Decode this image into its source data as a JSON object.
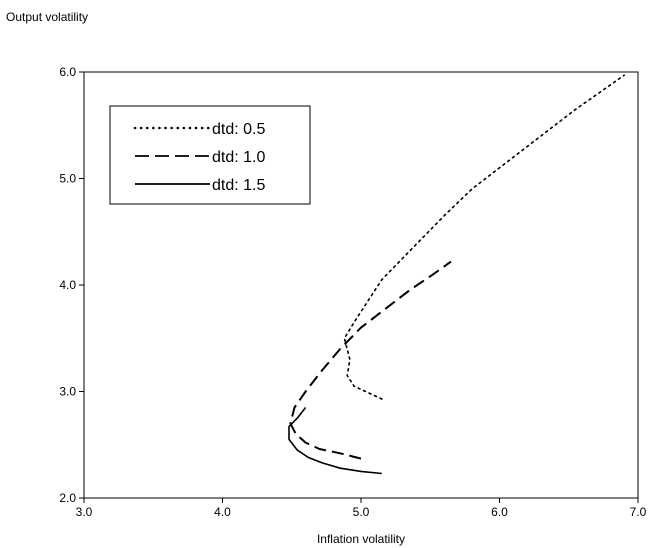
{
  "chart_data": {
    "type": "line",
    "title": "",
    "ylabel": "Output volatility",
    "xlabel": "Inflation volatility",
    "xlim": [
      3.0,
      7.0
    ],
    "ylim": [
      2.0,
      6.0
    ],
    "x_ticks": [
      "3.0",
      "4.0",
      "5.0",
      "6.0",
      "7.0"
    ],
    "y_ticks": [
      "2.0",
      "3.0",
      "4.0",
      "5.0",
      "6.0"
    ],
    "grid": false,
    "legend_position": "top-left",
    "series": [
      {
        "name": "dtd: 0.5",
        "style": "dotted",
        "points": [
          [
            5.15,
            2.93
          ],
          [
            4.95,
            3.05
          ],
          [
            4.9,
            3.15
          ],
          [
            4.92,
            3.3
          ],
          [
            4.88,
            3.5
          ],
          [
            4.95,
            3.65
          ],
          [
            5.05,
            3.85
          ],
          [
            5.15,
            4.05
          ],
          [
            5.3,
            4.25
          ],
          [
            5.45,
            4.45
          ],
          [
            5.6,
            4.65
          ],
          [
            5.8,
            4.9
          ],
          [
            6.05,
            5.15
          ],
          [
            6.3,
            5.4
          ],
          [
            6.55,
            5.65
          ],
          [
            6.9,
            5.97
          ]
        ]
      },
      {
        "name": "dtd: 1.0",
        "style": "dashed",
        "points": [
          [
            5.0,
            2.37
          ],
          [
            4.85,
            2.42
          ],
          [
            4.7,
            2.46
          ],
          [
            4.6,
            2.52
          ],
          [
            4.53,
            2.6
          ],
          [
            4.49,
            2.7
          ],
          [
            4.52,
            2.85
          ],
          [
            4.6,
            3.0
          ],
          [
            4.72,
            3.2
          ],
          [
            4.85,
            3.4
          ],
          [
            5.0,
            3.6
          ],
          [
            5.15,
            3.75
          ],
          [
            5.35,
            3.95
          ],
          [
            5.52,
            4.1
          ],
          [
            5.65,
            4.22
          ]
        ]
      },
      {
        "name": "dtd: 1.5",
        "style": "solid",
        "points": [
          [
            5.15,
            2.23
          ],
          [
            5.0,
            2.25
          ],
          [
            4.85,
            2.28
          ],
          [
            4.72,
            2.33
          ],
          [
            4.62,
            2.38
          ],
          [
            4.54,
            2.45
          ],
          [
            4.48,
            2.55
          ],
          [
            4.48,
            2.67
          ],
          [
            4.54,
            2.75
          ],
          [
            4.6,
            2.85
          ]
        ]
      }
    ]
  }
}
